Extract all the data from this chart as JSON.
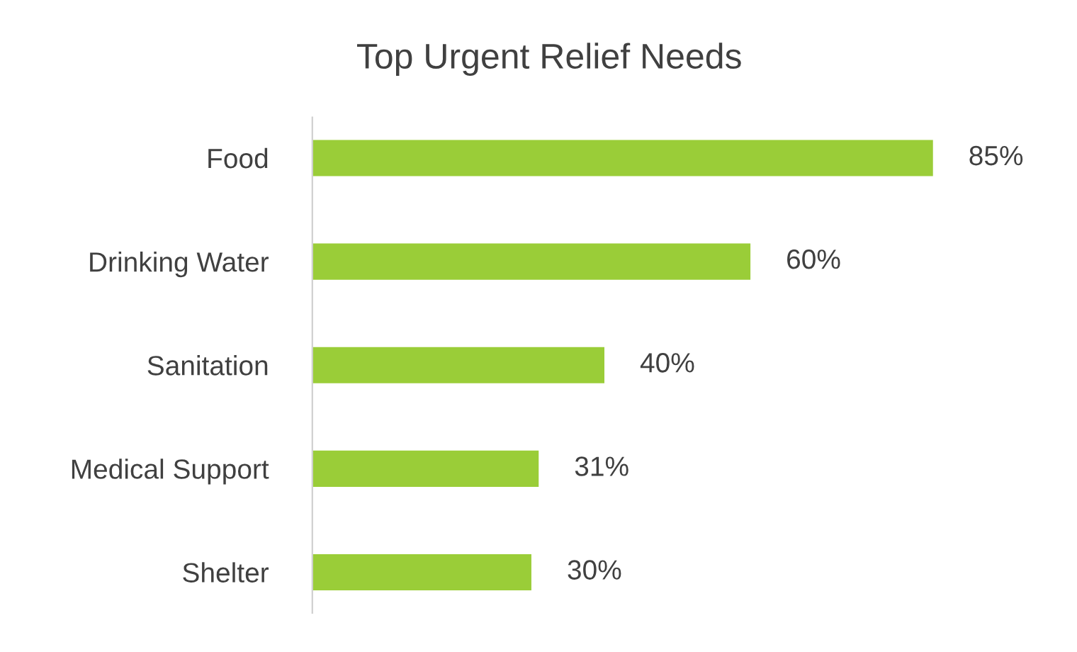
{
  "chart_data": {
    "type": "bar",
    "orientation": "horizontal",
    "title": "Top Urgent Relief Needs",
    "categories": [
      "Food",
      "Drinking Water",
      "Sanitation",
      "Medical Support",
      "Shelter"
    ],
    "values": [
      85,
      60,
      40,
      31,
      30
    ],
    "color": "#9acd38",
    "value_labels": [
      "85%",
      "60%",
      "40%",
      "31%",
      "30%"
    ],
    "tick_labels": "y",
    "grid": false,
    "legend": false
  }
}
